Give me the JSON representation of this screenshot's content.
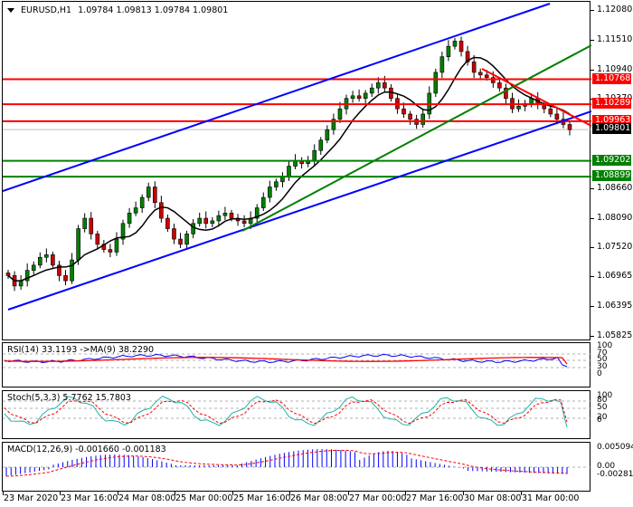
{
  "header": {
    "symbol": "EURUSD,H1",
    "ohlc": "1.09784 1.09813 1.09784 1.09801",
    "dropdown_icon": "triangle-down-icon"
  },
  "price_axis": {
    "labels": [
      "1.12080",
      "1.11510",
      "1.10940",
      "1.10370",
      "1.08660",
      "1.08090",
      "1.07520",
      "1.06965",
      "1.06395",
      "1.05825"
    ],
    "tags": [
      {
        "value": "1.10768",
        "color": "#ff0000"
      },
      {
        "value": "1.10289",
        "color": "#ff0000"
      },
      {
        "value": "1.09963",
        "color": "#ff0000"
      },
      {
        "value": "1.09801",
        "color": "#000000"
      },
      {
        "value": "1.09202",
        "color": "#008000"
      },
      {
        "value": "1.08899",
        "color": "#008000"
      }
    ]
  },
  "rsi": {
    "title": "RSI(14) 33.1193  ->MA(9) 38.2290",
    "axis": [
      "100",
      "70",
      "50",
      "30",
      "0"
    ]
  },
  "stoch": {
    "title": "Stoch(5,3,3) 5.7762 15.7803",
    "axis": [
      "100",
      "80",
      "50",
      "20",
      "0"
    ]
  },
  "macd": {
    "title": "MACD(12,26,9) -0.001660 -0.001183",
    "axis": [
      "0.005094",
      "0.00",
      "-0.002813"
    ]
  },
  "time_axis": [
    "23 Mar 2020",
    "23 Mar 16:00",
    "24 Mar 08:00",
    "25 Mar 00:00",
    "25 Mar 16:00",
    "26 Mar 08:00",
    "27 Mar 00:00",
    "27 Mar 16:00",
    "30 Mar 08:00",
    "31 Mar 00:00"
  ],
  "colors": {
    "bull": "#008000",
    "bear": "#cc0000",
    "channel": "#0000ff",
    "resistance": "#ff0000",
    "support": "#008000",
    "ma": "#000000",
    "rsi_line": "#0000ff",
    "rsi_ma": "#ff0000",
    "stoch_main": "#20b2aa",
    "stoch_signal": "#ff0000",
    "macd_hist": "#0000ff",
    "macd_signal": "#ff0000"
  },
  "chart_data": [
    {
      "type": "candlestick",
      "title": "EURUSD,H1",
      "ylim": [
        1.05825,
        1.1208
      ],
      "yticks": [
        1.1208,
        1.1151,
        1.1094,
        1.1037,
        1.0866,
        1.0809,
        1.0752,
        1.06965,
        1.06395,
        1.05825
      ],
      "x_ticks": [
        "23 Mar 2020",
        "23 Mar 16:00",
        "24 Mar 08:00",
        "25 Mar 00:00",
        "25 Mar 16:00",
        "26 Mar 08:00",
        "27 Mar 00:00",
        "27 Mar 16:00",
        "30 Mar 08:00",
        "31 Mar 00:00"
      ],
      "last": {
        "open": 1.09784,
        "high": 1.09813,
        "low": 1.09784,
        "close": 1.09801
      },
      "horizontal_levels": [
        {
          "value": 1.10768,
          "color": "red",
          "role": "resistance"
        },
        {
          "value": 1.10289,
          "color": "red",
          "role": "resistance"
        },
        {
          "value": 1.09963,
          "color": "red",
          "role": "resistance"
        },
        {
          "value": 1.09202,
          "color": "green",
          "role": "support"
        },
        {
          "value": 1.08899,
          "color": "green",
          "role": "support"
        }
      ],
      "trendlines": [
        {
          "name": "ascending channel upper",
          "color": "blue"
        },
        {
          "name": "ascending channel lower",
          "color": "blue"
        },
        {
          "name": "ascending support",
          "color": "green"
        },
        {
          "name": "descending resistance",
          "color": "red"
        }
      ],
      "close_approx": [
        1.07,
        1.068,
        1.069,
        1.071,
        1.072,
        1.0735,
        1.074,
        1.072,
        1.07,
        1.069,
        1.073,
        1.079,
        1.081,
        1.078,
        1.076,
        1.075,
        1.0745,
        1.077,
        1.08,
        1.082,
        1.083,
        1.085,
        1.087,
        1.084,
        1.081,
        1.079,
        1.077,
        1.076,
        1.078,
        1.08,
        1.081,
        1.08,
        1.0805,
        1.0815,
        1.082,
        1.081,
        1.0805,
        1.08,
        1.081,
        1.083,
        1.085,
        1.087,
        1.088,
        1.089,
        1.091,
        1.092,
        1.0915,
        1.092,
        1.094,
        1.096,
        1.098,
        1.1,
        1.102,
        1.104,
        1.1045,
        1.104,
        1.105,
        1.106,
        1.107,
        1.106,
        1.104,
        1.102,
        1.101,
        1.1,
        1.099,
        1.101,
        1.105,
        1.109,
        1.112,
        1.114,
        1.115,
        1.113,
        1.111,
        1.109,
        1.1085,
        1.108,
        1.107,
        1.106,
        1.104,
        1.102,
        1.1025,
        1.103,
        1.104,
        1.103,
        1.102,
        1.101,
        1.1,
        1.099,
        1.098
      ]
    },
    {
      "type": "line",
      "title": "RSI(14) 33.1193 ->MA(9) 38.2290",
      "ylim": [
        0,
        100
      ],
      "yticks": [
        100,
        70,
        50,
        30,
        0
      ],
      "series": [
        {
          "name": "RSI(14)",
          "last": 33.1193
        },
        {
          "name": "MA(9)",
          "last": 38.229
        }
      ]
    },
    {
      "type": "line",
      "title": "Stoch(5,3,3) 5.7762 15.7803",
      "ylim": [
        0,
        100
      ],
      "yticks": [
        100,
        80,
        50,
        20,
        0
      ],
      "series": [
        {
          "name": "%K",
          "last": 5.7762
        },
        {
          "name": "%D",
          "last": 15.7803
        }
      ]
    },
    {
      "type": "bar",
      "title": "MACD(12,26,9) -0.001660 -0.001183",
      "ylim": [
        -0.002813,
        0.005094
      ],
      "yticks": [
        0.005094,
        0.0,
        -0.002813
      ],
      "series": [
        {
          "name": "MACD",
          "last": -0.00166
        },
        {
          "name": "Signal",
          "last": -0.001183
        }
      ]
    }
  ]
}
